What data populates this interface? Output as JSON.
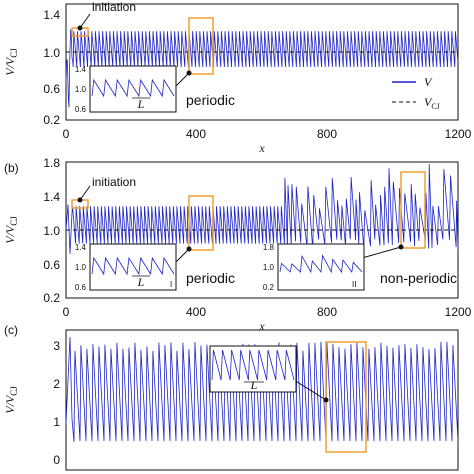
{
  "chart_data": [
    {
      "type": "line",
      "panel": "",
      "xlabel": "x",
      "ylabel": "V/V_CJ",
      "xlim": [
        0,
        1200
      ],
      "ylim": [
        0.2,
        1.6
      ],
      "xticks": [
        "0",
        "400",
        "800",
        "1200"
      ],
      "yticks": [
        "0.2",
        "0.6",
        "1.0",
        "1.4"
      ],
      "grid": false,
      "legend": "right",
      "series": [
        {
          "name": "V",
          "color": "#1f24c8",
          "style": "solid",
          "description_values": {
            "baseline": 1.06,
            "min": 0.82,
            "max": 1.3,
            "period": 12
          }
        },
        {
          "name": "V_CJ",
          "color": "#111111",
          "style": "dashed",
          "values": [
            1.0,
            1.0
          ]
        }
      ],
      "annotations": [
        "initiation",
        "periodic"
      ],
      "inset": {
        "yticks": [
          "0.6",
          "1.0",
          "1.4"
        ],
        "label": "L"
      }
    },
    {
      "type": "line",
      "panel": "(b)",
      "xlabel": "x",
      "ylabel": "V/V_CJ",
      "xlim": [
        0,
        1200
      ],
      "ylim": [
        0.2,
        1.8
      ],
      "xticks": [
        "0",
        "400",
        "800",
        "1200"
      ],
      "yticks": [
        "0.2",
        "0.6",
        "1.0",
        "1.4",
        "1.8"
      ],
      "grid": false,
      "series": [
        {
          "name": "V",
          "color": "#1f24c8",
          "style": "solid"
        },
        {
          "name": "V_CJ",
          "color": "#111111",
          "style": "dashed",
          "values": [
            1.0,
            1.0
          ]
        }
      ],
      "annotations": [
        "initiation",
        "periodic",
        "non-periodic"
      ],
      "insets": [
        {
          "yticks": [
            "0.6",
            "1.0",
            "1.4"
          ],
          "label": "L",
          "tag": "I"
        },
        {
          "yticks": [
            "0.2",
            "1.0",
            "1.8"
          ],
          "tag": "II"
        }
      ]
    },
    {
      "type": "line",
      "panel": "(c)",
      "ylabel": "V/V_CJ",
      "xlim": [
        0,
        1200
      ],
      "ylim": [
        0,
        3
      ],
      "yticks": [
        "0",
        "1",
        "2",
        "3"
      ],
      "grid": false,
      "series": [
        {
          "name": "V",
          "color": "#1f24c8",
          "style": "solid"
        }
      ],
      "inset": {
        "label": "L"
      }
    }
  ],
  "colors": {
    "signal": "#1f24c8",
    "box": "#f0a030",
    "axis": "#111111"
  }
}
